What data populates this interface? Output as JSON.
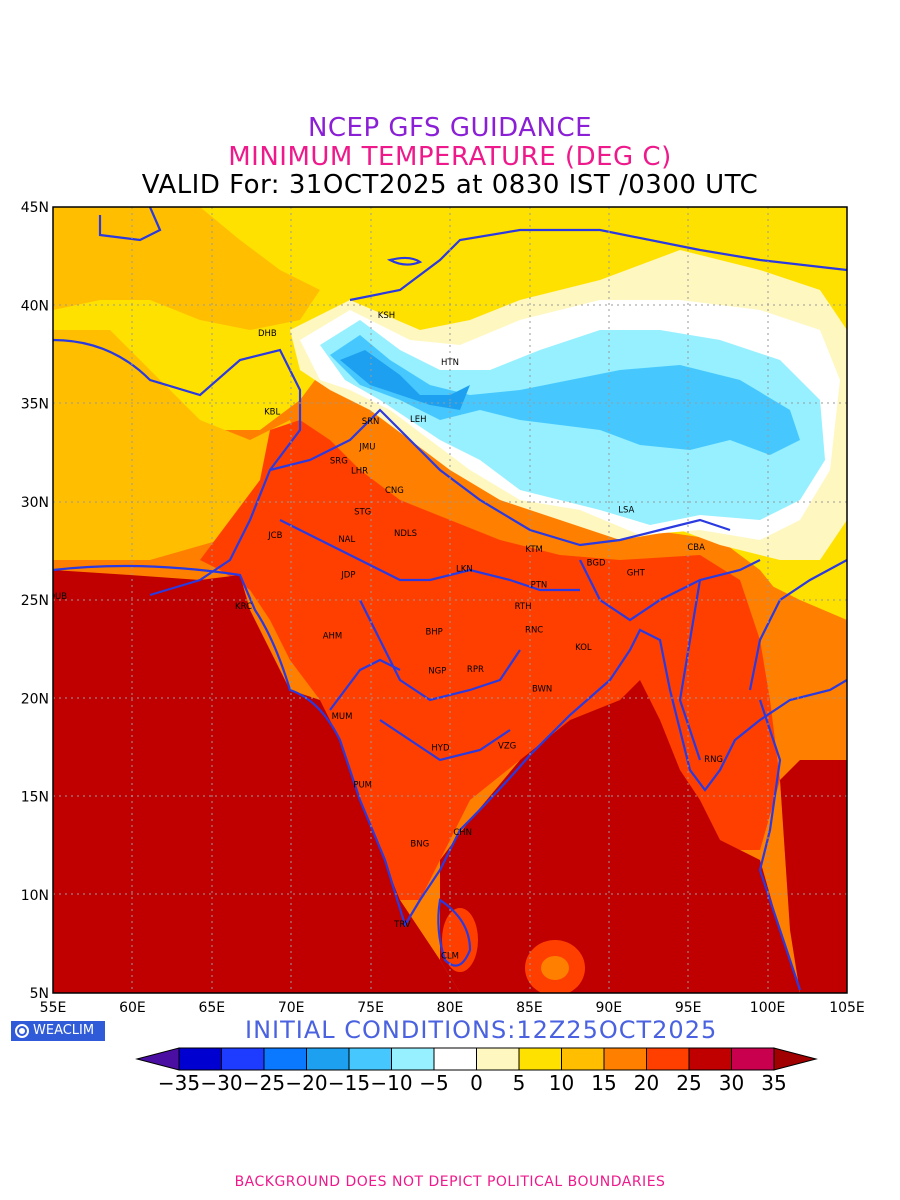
{
  "titles": {
    "line1": "NCEP GFS GUIDANCE",
    "line2": "MINIMUM TEMPERATURE (DEG C)",
    "line3": "VALID For: 31OCT2025 at 0830 IST /0300 UTC"
  },
  "axes": {
    "lat_labels": [
      "45N",
      "40N",
      "35N",
      "30N",
      "25N",
      "20N",
      "15N",
      "10N",
      "5N"
    ],
    "lon_labels": [
      "55E",
      "60E",
      "65E",
      "70E",
      "75E",
      "80E",
      "85E",
      "90E",
      "95E",
      "100E",
      "105E"
    ],
    "lat_range": [
      5,
      45
    ],
    "lon_range": [
      55,
      105
    ]
  },
  "cities": [
    {
      "code": "KSH",
      "lon": 76.0,
      "lat": 39.5
    },
    {
      "code": "DHB",
      "lon": 68.5,
      "lat": 38.6
    },
    {
      "code": "HTN",
      "lon": 80.0,
      "lat": 37.1
    },
    {
      "code": "KBL",
      "lon": 68.8,
      "lat": 34.6
    },
    {
      "code": "SRN",
      "lon": 75.0,
      "lat": 34.1
    },
    {
      "code": "LEH",
      "lon": 78.0,
      "lat": 34.2
    },
    {
      "code": "JMU",
      "lon": 74.8,
      "lat": 32.8
    },
    {
      "code": "SRG",
      "lon": 73.0,
      "lat": 32.1
    },
    {
      "code": "LHR",
      "lon": 74.3,
      "lat": 31.6
    },
    {
      "code": "CNG",
      "lon": 76.5,
      "lat": 30.6
    },
    {
      "code": "STG",
      "lon": 74.5,
      "lat": 29.5
    },
    {
      "code": "LSA",
      "lon": 91.1,
      "lat": 29.6
    },
    {
      "code": "JCB",
      "lon": 69.0,
      "lat": 28.3
    },
    {
      "code": "NAL",
      "lon": 73.5,
      "lat": 28.1
    },
    {
      "code": "NDLS",
      "lon": 77.2,
      "lat": 28.4
    },
    {
      "code": "KTM",
      "lon": 85.3,
      "lat": 27.6
    },
    {
      "code": "CBA",
      "lon": 95.5,
      "lat": 27.7
    },
    {
      "code": "BGD",
      "lon": 89.2,
      "lat": 26.9
    },
    {
      "code": "LKN",
      "lon": 80.9,
      "lat": 26.6
    },
    {
      "code": "GHT",
      "lon": 91.7,
      "lat": 26.4
    },
    {
      "code": "JDP",
      "lon": 73.6,
      "lat": 26.3
    },
    {
      "code": "DUB",
      "lon": 55.3,
      "lat": 25.2
    },
    {
      "code": "PTN",
      "lon": 85.6,
      "lat": 25.8
    },
    {
      "code": "KRC",
      "lon": 67.0,
      "lat": 24.7
    },
    {
      "code": "RTH",
      "lon": 84.6,
      "lat": 24.7
    },
    {
      "code": "BHP",
      "lon": 79.0,
      "lat": 23.4
    },
    {
      "code": "AHM",
      "lon": 72.6,
      "lat": 23.2
    },
    {
      "code": "RNC",
      "lon": 85.3,
      "lat": 23.5
    },
    {
      "code": "KOL",
      "lon": 88.4,
      "lat": 22.6
    },
    {
      "code": "NGP",
      "lon": 79.2,
      "lat": 21.4
    },
    {
      "code": "RPR",
      "lon": 81.6,
      "lat": 21.5
    },
    {
      "code": "BWN",
      "lon": 85.8,
      "lat": 20.5
    },
    {
      "code": "MUM",
      "lon": 73.2,
      "lat": 19.1
    },
    {
      "code": "HYD",
      "lon": 79.4,
      "lat": 17.5
    },
    {
      "code": "VZG",
      "lon": 83.6,
      "lat": 17.6
    },
    {
      "code": "RNG",
      "lon": 96.6,
      "lat": 16.9
    },
    {
      "code": "PUM",
      "lon": 74.5,
      "lat": 15.6
    },
    {
      "code": "CHN",
      "lon": 80.8,
      "lat": 13.2
    },
    {
      "code": "BNG",
      "lon": 78.1,
      "lat": 12.6
    },
    {
      "code": "TRV",
      "lon": 77.0,
      "lat": 8.5
    },
    {
      "code": "CLM",
      "lon": 80.0,
      "lat": 6.9
    }
  ],
  "colorbar": {
    "labels": [
      "-35",
      "-30",
      "-25",
      "-20",
      "-15",
      "-10",
      "-5",
      "0",
      "5",
      "10",
      "15",
      "20",
      "25",
      "30",
      "35"
    ],
    "colors": [
      "#4b0ea3",
      "#0000d0",
      "#1e3cff",
      "#0a78ff",
      "#1ea0f0",
      "#46c8ff",
      "#96f0ff",
      "#ffffff",
      "#fff7c0",
      "#ffe100",
      "#ffbe00",
      "#ff7f00",
      "#ff3f00",
      "#c00000",
      "#c8004e",
      "#a00000"
    ]
  },
  "logo": "WEACLIM",
  "initial_conditions": "INITIAL CONDITIONS:12Z25OCT2025",
  "footer": "BACKGROUND DOES NOT DEPICT POLITICAL BOUNDARIES"
}
